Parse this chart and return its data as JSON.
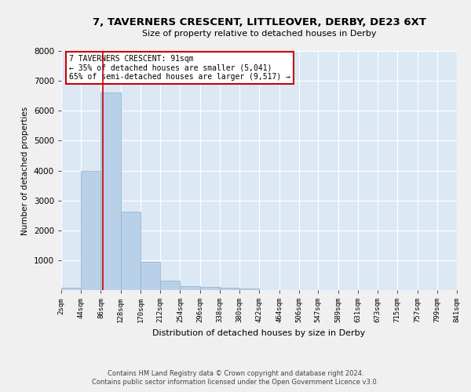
{
  "title": "7, TAVERNERS CRESCENT, LITTLEOVER, DERBY, DE23 6XT",
  "subtitle": "Size of property relative to detached houses in Derby",
  "xlabel": "Distribution of detached houses by size in Derby",
  "ylabel": "Number of detached properties",
  "bar_color": "#b8d0e8",
  "bar_edge_color": "#8ab0cc",
  "background_color": "#dde8f5",
  "grid_color": "#ffffff",
  "annotation_text": "7 TAVERNERS CRESCENT: 91sqm\n← 35% of detached houses are smaller (5,041)\n65% of semi-detached houses are larger (9,517) →",
  "annotation_box_color": "#ffffff",
  "annotation_box_edge_color": "#cc0000",
  "red_line_x": 91,
  "red_line_color": "#cc0000",
  "bin_edges": [
    2,
    44,
    86,
    128,
    170,
    212,
    254,
    296,
    338,
    380,
    422,
    464,
    506,
    547,
    589,
    631,
    673,
    715,
    757,
    799,
    841
  ],
  "bar_heights": [
    80,
    3980,
    6600,
    2620,
    950,
    310,
    120,
    110,
    90,
    60,
    0,
    0,
    0,
    0,
    0,
    0,
    0,
    0,
    0,
    0
  ],
  "ylim": [
    0,
    8000
  ],
  "yticks": [
    0,
    1000,
    2000,
    3000,
    4000,
    5000,
    6000,
    7000,
    8000
  ],
  "tick_labels": [
    "2sqm",
    "44sqm",
    "86sqm",
    "128sqm",
    "170sqm",
    "212sqm",
    "254sqm",
    "296sqm",
    "338sqm",
    "380sqm",
    "422sqm",
    "464sqm",
    "506sqm",
    "547sqm",
    "589sqm",
    "631sqm",
    "673sqm",
    "715sqm",
    "757sqm",
    "799sqm",
    "841sqm"
  ],
  "footer_line1": "Contains HM Land Registry data © Crown copyright and database right 2024.",
  "footer_line2": "Contains public sector information licensed under the Open Government Licence v3.0.",
  "fig_bg_color": "#f0f0f0"
}
